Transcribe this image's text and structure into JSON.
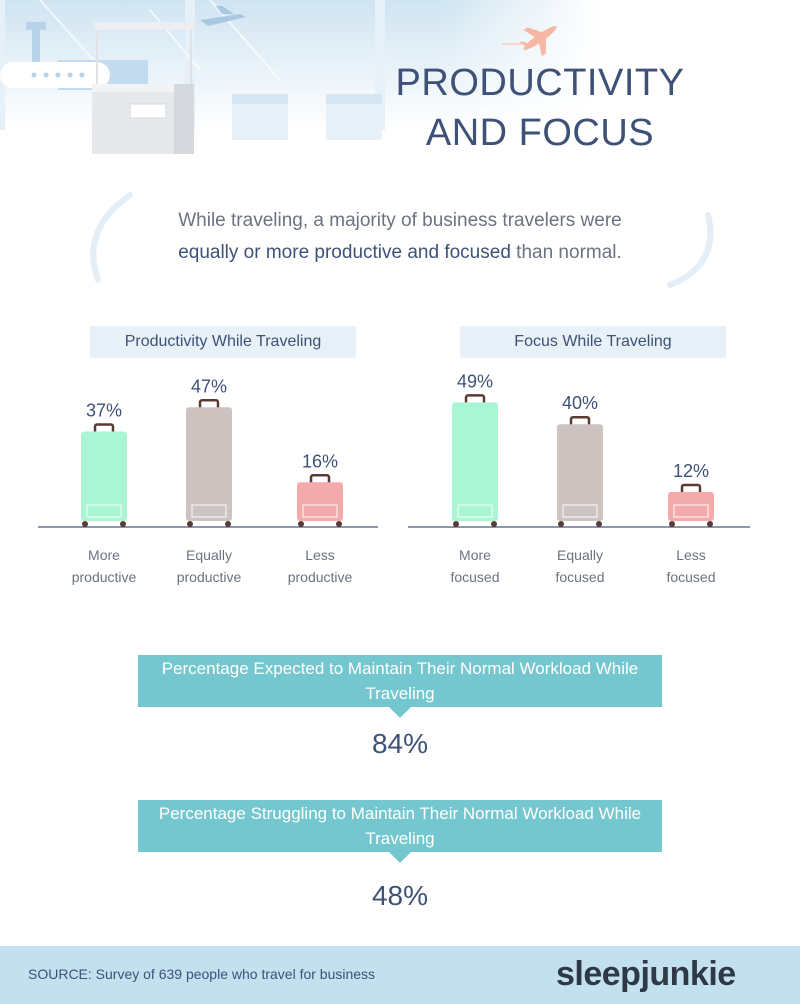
{
  "title_line1": "PRODUCTIVITY",
  "title_line2": "AND FOCUS",
  "intro": {
    "part1": "While traveling, a majority of business travelers were",
    "highlight": "equally or more productive and focused",
    "part2": "than normal."
  },
  "colors": {
    "more": "#a9f5d4",
    "equally": "#cdc3c1",
    "less": "#f3aaaa",
    "handle": "#5a3b34",
    "axis": "#4a5a73",
    "accent": "#74c7ce"
  },
  "chart_data": [
    {
      "type": "bar",
      "title": "Productivity While Traveling",
      "categories": [
        "More productive",
        "Equally productive",
        "Less productive"
      ],
      "category_lines": [
        [
          "More",
          "productive"
        ],
        [
          "Equally",
          "productive"
        ],
        [
          "Less",
          "productive"
        ]
      ],
      "values": [
        37,
        47,
        16
      ],
      "value_labels": [
        "37%",
        "47%",
        "16%"
      ],
      "ylim": [
        0,
        50
      ],
      "grid": false
    },
    {
      "type": "bar",
      "title": "Focus While Traveling",
      "categories": [
        "More focused",
        "Equally focused",
        "Less focused"
      ],
      "category_lines": [
        [
          "More",
          "focused"
        ],
        [
          "Equally",
          "focused"
        ],
        [
          "Less",
          "focused"
        ]
      ],
      "values": [
        49,
        40,
        12
      ],
      "value_labels": [
        "49%",
        "40%",
        "12%"
      ],
      "ylim": [
        0,
        50
      ],
      "grid": false
    }
  ],
  "callouts": [
    {
      "label": "Percentage Expected to Maintain Their Normal Workload While Traveling",
      "value": "84%"
    },
    {
      "label": "Percentage Struggling to Maintain Their Normal Workload While Traveling",
      "value": "48%"
    }
  ],
  "footer": {
    "source": "SOURCE: Survey of 639 people who travel for business",
    "brand": "sleepjunkie"
  }
}
